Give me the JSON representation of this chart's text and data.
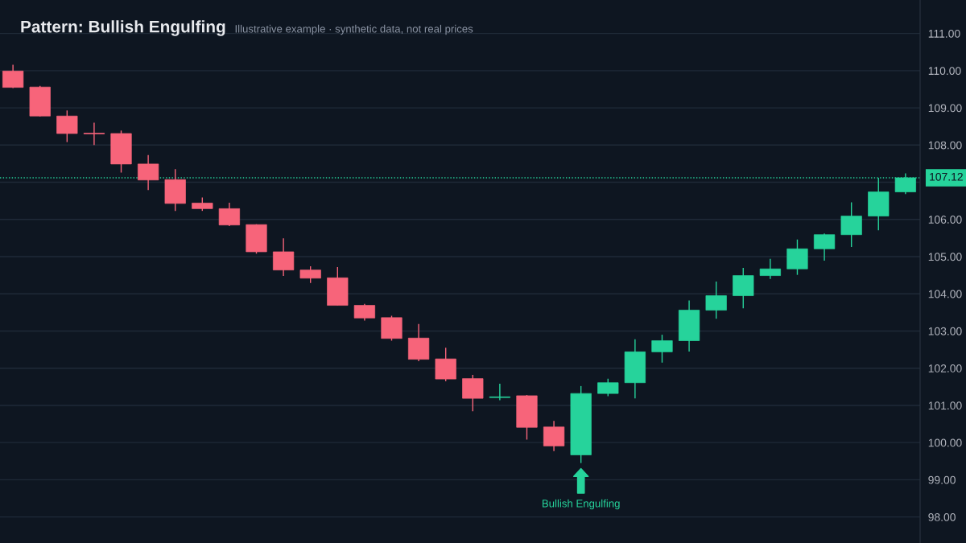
{
  "chart_data": {
    "type": "candlestick",
    "title": "Pattern: Bullish Engulfing",
    "subtitle": "Illustrative example · synthetic data, not real prices",
    "categories": [
      null,
      null,
      null,
      null,
      null,
      null,
      null,
      null,
      null,
      null,
      null,
      null,
      null,
      null,
      null,
      null,
      null,
      null,
      null,
      null,
      null,
      null,
      null,
      null,
      null,
      null,
      null,
      null,
      null,
      null,
      null,
      null,
      null,
      null
    ],
    "ohlc": [
      [
        109.99,
        110.16,
        109.53,
        109.55
      ],
      [
        109.56,
        109.59,
        108.77,
        108.78
      ],
      [
        108.78,
        108.93,
        108.08,
        108.31
      ],
      [
        108.31,
        108.6,
        108.0,
        108.3
      ],
      [
        108.31,
        108.39,
        107.26,
        107.49
      ],
      [
        107.49,
        107.73,
        106.79,
        107.06
      ],
      [
        107.07,
        107.35,
        106.23,
        106.43
      ],
      [
        106.44,
        106.59,
        106.23,
        106.29
      ],
      [
        106.29,
        106.45,
        105.82,
        105.85
      ],
      [
        105.86,
        105.87,
        105.08,
        105.13
      ],
      [
        105.13,
        105.49,
        104.48,
        104.64
      ],
      [
        104.64,
        104.74,
        104.29,
        104.42
      ],
      [
        104.43,
        104.72,
        103.69,
        103.69
      ],
      [
        103.69,
        103.73,
        103.28,
        103.35
      ],
      [
        103.36,
        103.41,
        102.74,
        102.8
      ],
      [
        102.81,
        103.19,
        102.19,
        102.24
      ],
      [
        102.25,
        102.55,
        101.65,
        101.71
      ],
      [
        101.72,
        101.82,
        100.84,
        101.19
      ],
      [
        101.21,
        101.58,
        101.14,
        101.23
      ],
      [
        101.26,
        101.28,
        100.08,
        100.41
      ],
      [
        100.42,
        100.58,
        99.77,
        99.91
      ],
      [
        99.67,
        101.52,
        99.45,
        101.32
      ],
      [
        101.32,
        101.72,
        101.25,
        101.61
      ],
      [
        101.61,
        102.78,
        101.19,
        102.44
      ],
      [
        102.44,
        102.9,
        102.15,
        102.74
      ],
      [
        102.74,
        103.82,
        102.45,
        103.56
      ],
      [
        103.56,
        104.33,
        103.33,
        103.95
      ],
      [
        103.95,
        104.7,
        103.61,
        104.49
      ],
      [
        104.49,
        104.94,
        104.4,
        104.67
      ],
      [
        104.67,
        105.46,
        104.51,
        105.21
      ],
      [
        105.21,
        105.62,
        104.89,
        105.59
      ],
      [
        105.59,
        106.46,
        105.26,
        106.09
      ],
      [
        106.09,
        107.12,
        105.71,
        106.74
      ],
      [
        106.74,
        107.24,
        106.68,
        107.12
      ]
    ],
    "colors": [
      "#f7647a",
      "#f7647a",
      "#f7647a",
      "#f7647a",
      "#f7647a",
      "#f7647a",
      "#f7647a",
      "#f7647a",
      "#f7647a",
      "#f7647a",
      "#f7647a",
      "#f7647a",
      "#f7647a",
      "#f7647a",
      "#f7647a",
      "#f7647a",
      "#f7647a",
      "#f7647a",
      "#26d39b",
      "#f7647a",
      "#f7647a",
      "#26d39b",
      "#26d39b",
      "#26d39b",
      "#26d39b",
      "#26d39b",
      "#26d39b",
      "#26d39b",
      "#26d39b",
      "#26d39b",
      "#26d39b",
      "#26d39b",
      "#26d39b",
      "#26d39b"
    ],
    "ylim": [
      97.3,
      111.9
    ],
    "yticks": [
      {
        "value": 98,
        "label": "98.00"
      },
      {
        "value": 99,
        "label": "99.00"
      },
      {
        "value": 100,
        "label": "100.00"
      },
      {
        "value": 101,
        "label": "101.00"
      },
      {
        "value": 102,
        "label": "102.00"
      },
      {
        "value": 103,
        "label": "103.00"
      },
      {
        "value": 104,
        "label": "104.00"
      },
      {
        "value": 105,
        "label": "105.00"
      },
      {
        "value": 106,
        "label": "106.00"
      },
      {
        "value": 107,
        "label": null
      },
      {
        "value": 108,
        "label": "108.00"
      },
      {
        "value": 109,
        "label": "109.00"
      },
      {
        "value": 110,
        "label": "110.00"
      },
      {
        "value": 111,
        "label": "111.00"
      }
    ],
    "grid": "y",
    "ref_lines": [
      {
        "axis": "y",
        "value": 107.12,
        "label": "107.12",
        "color": "#26d39b",
        "line_style": "dotted"
      }
    ],
    "annotations": [
      "Bullish Engulfing"
    ]
  }
}
